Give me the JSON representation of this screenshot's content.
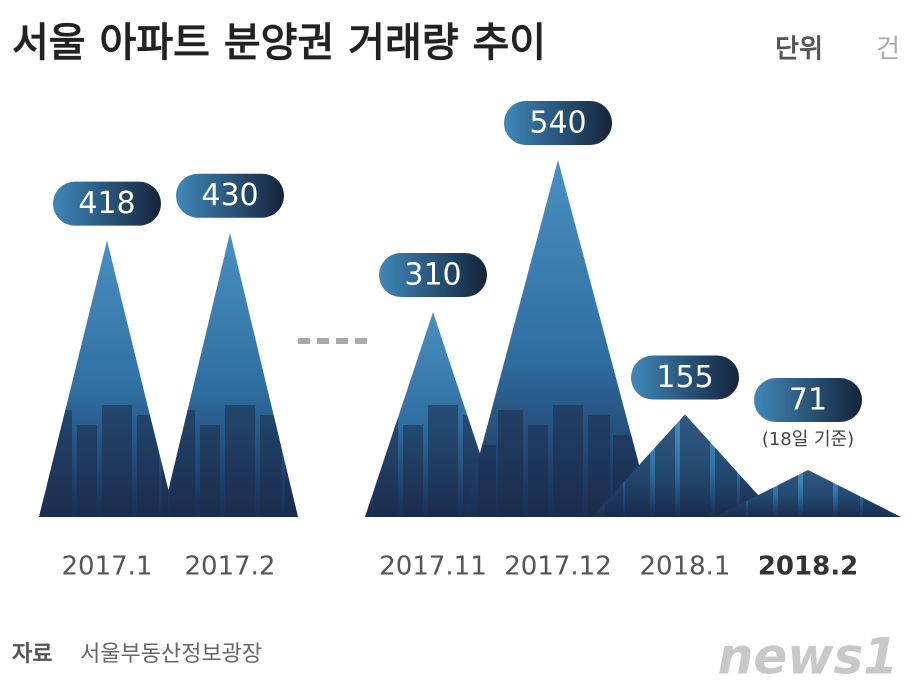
{
  "chart_data": {
    "type": "mountain",
    "title": "서울 아파트 분양권 거래량 추이",
    "unit": {
      "label": "단위",
      "text": "건"
    },
    "categories": [
      "2017.1",
      "2017.2",
      "2017.11",
      "2017.12",
      "2018.1",
      "2018.2"
    ],
    "values": [
      418,
      430,
      310,
      540,
      155,
      71
    ],
    "color": "#4a90c2",
    "annotation": "(18일 기준)",
    "source": {
      "label": "자료",
      "text": "서울부동산정보광장"
    },
    "logo": "news1"
  }
}
